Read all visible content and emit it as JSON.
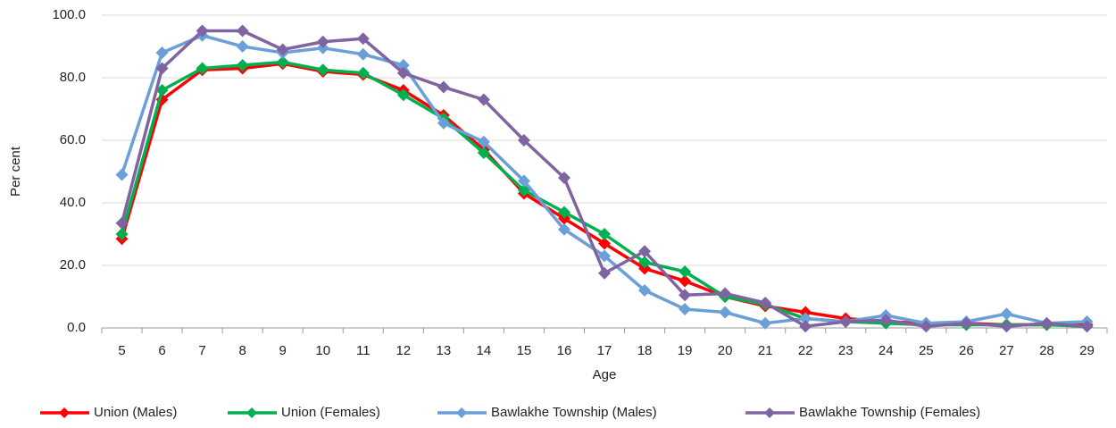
{
  "chart_data": {
    "type": "line",
    "x_label": "Age",
    "y_label": "Per cent",
    "categories": [
      "5",
      "6",
      "7",
      "8",
      "9",
      "10",
      "11",
      "12",
      "13",
      "14",
      "15",
      "16",
      "17",
      "18",
      "19",
      "20",
      "21",
      "22",
      "23",
      "24",
      "25",
      "26",
      "27",
      "28",
      "29"
    ],
    "ylim": [
      0,
      100
    ],
    "yticks": [
      {
        "value": 0,
        "label": "0.0"
      },
      {
        "value": 20,
        "label": "20.0"
      },
      {
        "value": 40,
        "label": "40.0"
      },
      {
        "value": 60,
        "label": "60.0"
      },
      {
        "value": 80,
        "label": "80.0"
      },
      {
        "value": 100,
        "label": "100.0"
      }
    ],
    "grid": true,
    "legend": "bottom",
    "series": [
      {
        "name": "Union (Males)",
        "color": "#ff0000",
        "values": [
          28.5,
          73,
          82.5,
          83,
          84.5,
          82,
          81,
          76,
          68,
          57,
          43,
          35,
          27,
          19,
          15,
          10,
          7,
          5,
          3,
          2,
          1.5,
          1.5,
          1,
          1,
          1
        ]
      },
      {
        "name": "Union (Females)",
        "color": "#00b050",
        "values": [
          30,
          76,
          83,
          84,
          85,
          82.5,
          81.5,
          74.5,
          67,
          56,
          44,
          37,
          30,
          21,
          18,
          10,
          7.5,
          3,
          2,
          1.5,
          1,
          1,
          1,
          1,
          0.5
        ]
      },
      {
        "name": "Bawlakhe Township (Males)",
        "color": "#6a9fd8",
        "values": [
          49,
          88,
          93.5,
          90,
          88,
          89.5,
          87.5,
          84,
          65.5,
          59.5,
          47,
          31.5,
          23,
          12,
          6,
          5,
          1.5,
          3,
          2,
          4,
          1.5,
          2,
          4.5,
          1.5,
          2
        ]
      },
      {
        "name": "Bawlakhe Township (Females)",
        "color": "#8064a2",
        "values": [
          33.5,
          83,
          95,
          95,
          89,
          91.5,
          92.5,
          81.5,
          77,
          73,
          60,
          48,
          17.5,
          24.5,
          10.5,
          11,
          8,
          0.5,
          2,
          2.5,
          0.5,
          1.5,
          0.5,
          1.5,
          0.5
        ]
      }
    ]
  }
}
